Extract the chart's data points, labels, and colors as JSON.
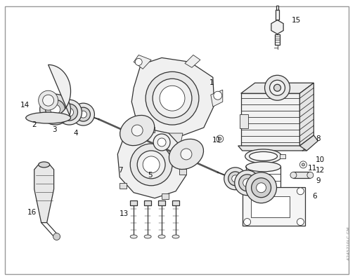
{
  "bg_color": "#ffffff",
  "line_color": "#333333",
  "label_color": "#111111",
  "figsize": [
    5.05,
    3.98
  ],
  "dpi": 100,
  "watermark": "4245710LC GM"
}
